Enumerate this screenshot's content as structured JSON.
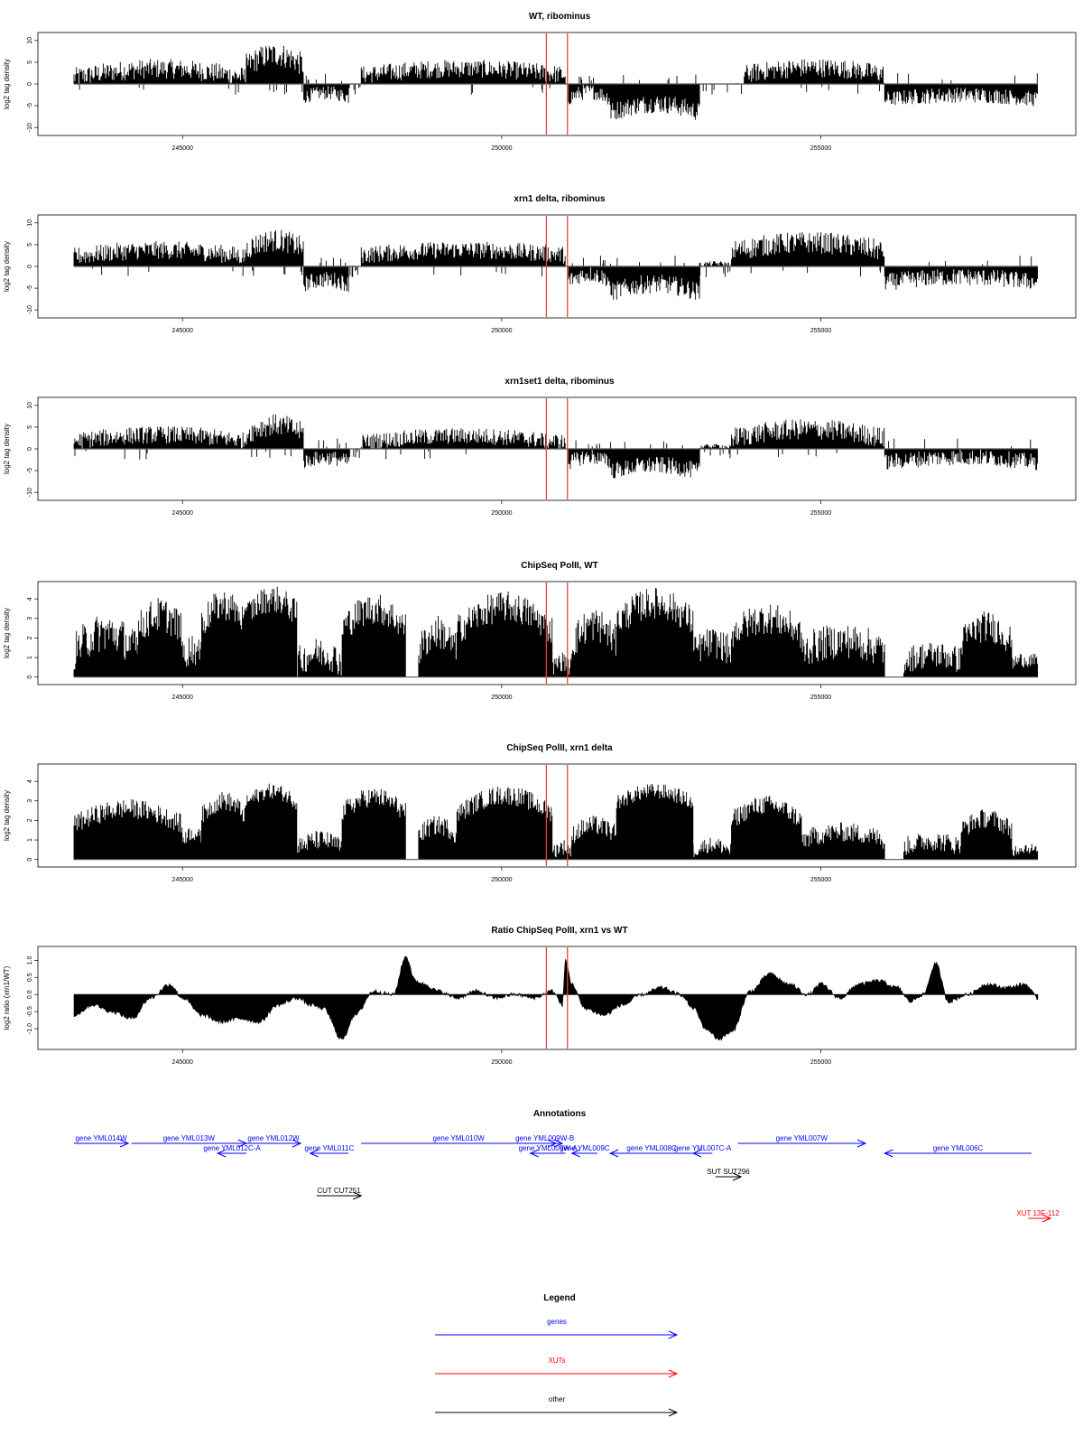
{
  "colors": {
    "genes": "#0000ff",
    "xuts": "#ff0000",
    "other": "#000000",
    "marker": "#e84040",
    "signal": "#000000"
  },
  "chart_data": [
    {
      "type": "bar",
      "title": "WT, ribominus",
      "ylabel": "log2 tag density",
      "xlim": [
        243300,
        258400
      ],
      "ylim": [
        -11,
        11
      ],
      "xticks": [
        {
          "value": 245000,
          "label": "245000"
        },
        {
          "value": 250000,
          "label": "250000"
        },
        {
          "value": 255000,
          "label": "255000"
        }
      ],
      "yticks": [
        {
          "value": 10,
          "label": "10"
        },
        {
          "value": 5,
          "label": "5"
        },
        {
          "value": 0,
          "label": "0"
        },
        {
          "value": -5,
          "label": "-5"
        },
        {
          "value": -10,
          "label": "-10"
        }
      ],
      "markers_x": [
        250700,
        251030
      ],
      "segments": [
        {
          "x0": 243300,
          "x1": 246000,
          "mean": 2.5,
          "amp": 2.0,
          "spread": 2.3
        },
        {
          "x0": 246000,
          "x1": 246900,
          "mean": 5.5,
          "amp": 2.5,
          "spread": 2.8
        },
        {
          "x0": 246900,
          "x1": 247600,
          "mean": -2.5,
          "amp": 1.0,
          "spread": 1.6
        },
        {
          "x0": 247600,
          "x1": 247800,
          "mean": 0.0,
          "amp": 0.0,
          "spread": 0.2
        },
        {
          "x0": 247800,
          "x1": 251000,
          "mean": 2.8,
          "amp": 1.5,
          "spread": 2.1
        },
        {
          "x0": 251050,
          "x1": 251700,
          "mean": -2.5,
          "amp": 1.5,
          "spread": 1.8
        },
        {
          "x0": 251700,
          "x1": 253100,
          "mean": -5.5,
          "amp": 2.0,
          "spread": 2.2
        },
        {
          "x0": 253100,
          "x1": 253800,
          "mean": 0.0,
          "amp": 0.0,
          "spread": 0.15
        },
        {
          "x0": 253800,
          "x1": 256000,
          "mean": 3.0,
          "amp": 1.5,
          "spread": 2.2
        },
        {
          "x0": 256000,
          "x1": 258400,
          "mean": -3.0,
          "amp": 1.0,
          "spread": 1.8
        }
      ]
    },
    {
      "type": "bar",
      "title": "xrn1 delta, ribominus",
      "ylabel": "log2 tag density",
      "xlim": [
        243300,
        258400
      ],
      "ylim": [
        -11,
        11
      ],
      "xticks": [
        {
          "value": 245000,
          "label": "245000"
        },
        {
          "value": 250000,
          "label": "250000"
        },
        {
          "value": 255000,
          "label": "255000"
        }
      ],
      "yticks": [
        {
          "value": 10,
          "label": "10"
        },
        {
          "value": 5,
          "label": "5"
        },
        {
          "value": 0,
          "label": "0"
        },
        {
          "value": -5,
          "label": "-5"
        },
        {
          "value": -10,
          "label": "-10"
        }
      ],
      "markers_x": [
        250700,
        251030
      ],
      "segments": [
        {
          "x0": 243300,
          "x1": 246000,
          "mean": 3.0,
          "amp": 1.5,
          "spread": 2.1
        },
        {
          "x0": 246000,
          "x1": 246900,
          "mean": 5.0,
          "amp": 2.0,
          "spread": 2.6
        },
        {
          "x0": 246900,
          "x1": 247600,
          "mean": -3.5,
          "amp": 1.0,
          "spread": 1.9
        },
        {
          "x0": 247600,
          "x1": 247800,
          "mean": 0.0,
          "amp": 0.0,
          "spread": 0.2
        },
        {
          "x0": 247800,
          "x1": 251000,
          "mean": 3.2,
          "amp": 1.2,
          "spread": 2.0
        },
        {
          "x0": 251050,
          "x1": 251700,
          "mean": -2.5,
          "amp": 1.5,
          "spread": 1.9
        },
        {
          "x0": 251700,
          "x1": 253100,
          "mean": -5.0,
          "amp": 2.0,
          "spread": 2.2
        },
        {
          "x0": 253100,
          "x1": 253600,
          "mean": 0.5,
          "amp": 0.3,
          "spread": 0.6
        },
        {
          "x0": 253600,
          "x1": 256000,
          "mean": 4.5,
          "amp": 2.0,
          "spread": 2.5
        },
        {
          "x0": 256000,
          "x1": 258400,
          "mean": -3.0,
          "amp": 1.2,
          "spread": 2.0
        }
      ]
    },
    {
      "type": "bar",
      "title": "xrn1set1 delta, ribominus",
      "ylabel": "log2 tag density",
      "xlim": [
        243300,
        258400
      ],
      "ylim": [
        -11,
        11
      ],
      "xticks": [
        {
          "value": 245000,
          "label": "245000"
        },
        {
          "value": 250000,
          "label": "250000"
        },
        {
          "value": 255000,
          "label": "255000"
        }
      ],
      "yticks": [
        {
          "value": 10,
          "label": "10"
        },
        {
          "value": 5,
          "label": "5"
        },
        {
          "value": 0,
          "label": "0"
        },
        {
          "value": -5,
          "label": "-5"
        },
        {
          "value": -10,
          "label": "-10"
        }
      ],
      "markers_x": [
        250700,
        251030
      ],
      "segments": [
        {
          "x0": 243300,
          "x1": 246000,
          "mean": 2.5,
          "amp": 1.5,
          "spread": 2.0
        },
        {
          "x0": 246000,
          "x1": 246900,
          "mean": 4.5,
          "amp": 2.0,
          "spread": 2.5
        },
        {
          "x0": 246900,
          "x1": 247600,
          "mean": -2.5,
          "amp": 1.0,
          "spread": 1.7
        },
        {
          "x0": 247600,
          "x1": 247800,
          "mean": 0.0,
          "amp": 0.0,
          "spread": 0.2
        },
        {
          "x0": 247800,
          "x1": 251000,
          "mean": 2.2,
          "amp": 1.5,
          "spread": 1.9
        },
        {
          "x0": 251050,
          "x1": 251700,
          "mean": -2.5,
          "amp": 1.5,
          "spread": 1.8
        },
        {
          "x0": 251700,
          "x1": 253100,
          "mean": -4.5,
          "amp": 1.5,
          "spread": 2.0
        },
        {
          "x0": 253100,
          "x1": 253600,
          "mean": 0.5,
          "amp": 0.3,
          "spread": 0.5
        },
        {
          "x0": 253600,
          "x1": 256000,
          "mean": 3.5,
          "amp": 2.0,
          "spread": 2.4
        },
        {
          "x0": 256000,
          "x1": 258400,
          "mean": -2.5,
          "amp": 1.2,
          "spread": 1.9
        }
      ]
    },
    {
      "type": "bar",
      "title": "ChipSeq PolII, WT",
      "ylabel": "log2 tag density",
      "xlim": [
        243300,
        258400
      ],
      "ylim": [
        -0.2,
        4.7
      ],
      "xticks": [
        {
          "value": 245000,
          "label": "245000"
        },
        {
          "value": 250000,
          "label": "250000"
        },
        {
          "value": 255000,
          "label": "255000"
        }
      ],
      "yticks": [
        {
          "value": 0,
          "label": "0"
        },
        {
          "value": 1,
          "label": "1"
        },
        {
          "value": 2,
          "label": "2"
        },
        {
          "value": 3,
          "label": "3"
        },
        {
          "value": 4,
          "label": "4"
        }
      ],
      "markers_x": [
        250700,
        251030
      ],
      "segments": [
        {
          "x0": 243300,
          "x1": 244300,
          "mean": 1.8,
          "amp": 1.0,
          "spread": 1.0
        },
        {
          "x0": 244300,
          "x1": 245000,
          "mean": 2.8,
          "amp": 0.8,
          "spread": 0.9
        },
        {
          "x0": 245000,
          "x1": 245300,
          "mean": 1.2,
          "amp": 0.5,
          "spread": 0.8
        },
        {
          "x0": 245300,
          "x1": 246000,
          "mean": 3.2,
          "amp": 1.0,
          "spread": 0.8
        },
        {
          "x0": 246000,
          "x1": 246800,
          "mean": 3.6,
          "amp": 0.8,
          "spread": 0.7
        },
        {
          "x0": 246800,
          "x1": 247500,
          "mean": 1.0,
          "amp": 0.5,
          "spread": 0.8
        },
        {
          "x0": 247500,
          "x1": 248500,
          "mean": 3.0,
          "amp": 1.0,
          "spread": 0.8
        },
        {
          "x0": 248500,
          "x1": 248700,
          "mean": 0.0,
          "amp": 0.0,
          "spread": 0.0
        },
        {
          "x0": 248700,
          "x1": 249300,
          "mean": 1.8,
          "amp": 1.0,
          "spread": 0.9
        },
        {
          "x0": 249300,
          "x1": 250800,
          "mean": 3.0,
          "amp": 1.2,
          "spread": 0.8
        },
        {
          "x0": 250800,
          "x1": 251100,
          "mean": 0.6,
          "amp": 0.4,
          "spread": 0.5
        },
        {
          "x0": 251100,
          "x1": 251800,
          "mean": 2.2,
          "amp": 1.0,
          "spread": 0.9
        },
        {
          "x0": 251800,
          "x1": 253000,
          "mean": 3.3,
          "amp": 1.0,
          "spread": 0.8
        },
        {
          "x0": 253000,
          "x1": 253600,
          "mean": 1.5,
          "amp": 0.5,
          "spread": 0.8
        },
        {
          "x0": 253600,
          "x1": 254700,
          "mean": 2.6,
          "amp": 0.8,
          "spread": 0.8
        },
        {
          "x0": 254700,
          "x1": 256000,
          "mean": 1.6,
          "amp": 0.5,
          "spread": 0.9
        },
        {
          "x0": 256000,
          "x1": 256300,
          "mean": 0.0,
          "amp": 0.0,
          "spread": 0.0
        },
        {
          "x0": 256300,
          "x1": 257200,
          "mean": 1.0,
          "amp": 0.3,
          "spread": 0.7
        },
        {
          "x0": 257200,
          "x1": 258000,
          "mean": 2.2,
          "amp": 0.8,
          "spread": 0.8
        },
        {
          "x0": 258000,
          "x1": 258400,
          "mean": 0.8,
          "amp": 0.2,
          "spread": 0.4
        }
      ]
    },
    {
      "type": "bar",
      "title": "ChipSeq PolII, xrn1 delta",
      "ylabel": "log2 tag density",
      "xlim": [
        243300,
        258400
      ],
      "ylim": [
        -0.2,
        4.7
      ],
      "xticks": [
        {
          "value": 245000,
          "label": "245000"
        },
        {
          "value": 250000,
          "label": "250000"
        },
        {
          "value": 255000,
          "label": "255000"
        }
      ],
      "yticks": [
        {
          "value": 0,
          "label": "0"
        },
        {
          "value": 1,
          "label": "1"
        },
        {
          "value": 2,
          "label": "2"
        },
        {
          "value": 3,
          "label": "3"
        },
        {
          "value": 4,
          "label": "4"
        }
      ],
      "markers_x": [
        250700,
        251030
      ],
      "segments": [
        {
          "x0": 243300,
          "x1": 245000,
          "mean": 2.2,
          "amp": 0.8,
          "spread": 0.5
        },
        {
          "x0": 245000,
          "x1": 245300,
          "mean": 1.2,
          "amp": 0.3,
          "spread": 0.4
        },
        {
          "x0": 245300,
          "x1": 246000,
          "mean": 2.6,
          "amp": 0.8,
          "spread": 0.5
        },
        {
          "x0": 246000,
          "x1": 246800,
          "mean": 3.2,
          "amp": 0.6,
          "spread": 0.4
        },
        {
          "x0": 246800,
          "x1": 247500,
          "mean": 0.8,
          "amp": 0.4,
          "spread": 0.5
        },
        {
          "x0": 247500,
          "x1": 248500,
          "mean": 2.8,
          "amp": 0.8,
          "spread": 0.5
        },
        {
          "x0": 248500,
          "x1": 248700,
          "mean": 0.0,
          "amp": 0.0,
          "spread": 0.0
        },
        {
          "x0": 248700,
          "x1": 249300,
          "mean": 1.5,
          "amp": 0.5,
          "spread": 0.5
        },
        {
          "x0": 249300,
          "x1": 250800,
          "mean": 2.8,
          "amp": 1.0,
          "spread": 0.5
        },
        {
          "x0": 250800,
          "x1": 251100,
          "mean": 0.5,
          "amp": 0.3,
          "spread": 0.4
        },
        {
          "x0": 251100,
          "x1": 251800,
          "mean": 1.5,
          "amp": 0.5,
          "spread": 0.5
        },
        {
          "x0": 251800,
          "x1": 253000,
          "mean": 3.2,
          "amp": 0.6,
          "spread": 0.4
        },
        {
          "x0": 253000,
          "x1": 253600,
          "mean": 0.6,
          "amp": 0.3,
          "spread": 0.4
        },
        {
          "x0": 253600,
          "x1": 254700,
          "mean": 2.4,
          "amp": 0.8,
          "spread": 0.5
        },
        {
          "x0": 254700,
          "x1": 256000,
          "mean": 1.2,
          "amp": 0.4,
          "spread": 0.5
        },
        {
          "x0": 256000,
          "x1": 256300,
          "mean": 0.0,
          "amp": 0.0,
          "spread": 0.0
        },
        {
          "x0": 256300,
          "x1": 257200,
          "mean": 0.8,
          "amp": 0.3,
          "spread": 0.5
        },
        {
          "x0": 257200,
          "x1": 258000,
          "mean": 1.8,
          "amp": 0.6,
          "spread": 0.5
        },
        {
          "x0": 258000,
          "x1": 258400,
          "mean": 0.5,
          "amp": 0.2,
          "spread": 0.3
        }
      ]
    },
    {
      "type": "area",
      "title": "Ratio ChipSeq PolII, xrn1 vs WT",
      "ylabel": "log2 ratio (xrn1/WT)",
      "xlim": [
        243300,
        258400
      ],
      "ylim": [
        -1.5,
        1.3
      ],
      "xticks": [
        {
          "value": 245000,
          "label": "245000"
        },
        {
          "value": 250000,
          "label": "250000"
        },
        {
          "value": 255000,
          "label": "255000"
        }
      ],
      "yticks": [
        {
          "value": 1.0,
          "label": "1.0"
        },
        {
          "value": 0.5,
          "label": "0.5"
        },
        {
          "value": 0.0,
          "label": "0.0"
        },
        {
          "value": -0.5,
          "label": "-0.5"
        },
        {
          "value": -1.0,
          "label": "-1.0"
        }
      ],
      "markers_x": [
        250700,
        251030
      ],
      "x": [
        243300,
        243600,
        243900,
        244200,
        244500,
        244800,
        245000,
        245300,
        245600,
        245900,
        246200,
        246500,
        246800,
        247000,
        247200,
        247500,
        247700,
        248000,
        248300,
        248500,
        248650,
        248800,
        249000,
        249300,
        249600,
        249900,
        250200,
        250500,
        250800,
        250950,
        251000,
        251100,
        251300,
        251600,
        251900,
        252200,
        252500,
        252800,
        253000,
        253200,
        253400,
        253600,
        253900,
        254200,
        254500,
        254800,
        255000,
        255300,
        255600,
        255900,
        256200,
        256400,
        256600,
        256800,
        257000,
        257300,
        257600,
        257900,
        258200,
        258400
      ],
      "values": [
        -0.6,
        -0.3,
        -0.5,
        -0.7,
        -0.1,
        0.3,
        -0.1,
        -0.6,
        -0.8,
        -0.7,
        -0.8,
        -0.3,
        -0.1,
        -0.3,
        -0.4,
        -1.3,
        -0.6,
        0.1,
        0.0,
        1.1,
        0.4,
        0.3,
        0.1,
        -0.1,
        0.1,
        -0.1,
        0.0,
        -0.1,
        0.1,
        -0.3,
        1.0,
        0.3,
        -0.4,
        -0.6,
        -0.3,
        0.0,
        0.2,
        0.0,
        -0.4,
        -1.0,
        -1.3,
        -1.1,
        0.1,
        0.6,
        0.3,
        0.0,
        0.3,
        -0.1,
        0.3,
        0.4,
        0.2,
        -0.2,
        0.0,
        0.9,
        -0.2,
        0.0,
        0.3,
        0.2,
        0.3,
        -0.1
      ]
    }
  ],
  "annotations": {
    "title": "Annotations",
    "xlim": [
      243300,
      258400
    ],
    "features": [
      {
        "label": "gene YML014W",
        "kind": "gene",
        "x0": 243300,
        "x1": 244150,
        "strand": "+",
        "row": 0
      },
      {
        "label": "gene YML013W",
        "kind": "gene",
        "x0": 244200,
        "x1": 246000,
        "strand": "+",
        "row": 0
      },
      {
        "label": "gene YML012W",
        "kind": "gene",
        "x0": 246000,
        "x1": 246850,
        "strand": "+",
        "row": 0
      },
      {
        "label": "gene YML012C-A",
        "kind": "gene",
        "x0": 245550,
        "x1": 246000,
        "strand": "-",
        "row": 1
      },
      {
        "label": "gene YML011C",
        "kind": "gene",
        "x0": 247000,
        "x1": 247600,
        "strand": "-",
        "row": 1
      },
      {
        "label": "gene YML010W",
        "kind": "gene",
        "x0": 247800,
        "x1": 250850,
        "strand": "+",
        "row": 0
      },
      {
        "label": "gene YML009W-B",
        "kind": "gene",
        "x0": 250400,
        "x1": 250950,
        "strand": "+",
        "row": 0
      },
      {
        "label": "gene YML009W-A",
        "kind": "gene",
        "x0": 250450,
        "x1": 251000,
        "strand": "-",
        "row": 1
      },
      {
        "label": "gene YML009C",
        "kind": "gene",
        "x0": 251100,
        "x1": 251500,
        "strand": "-",
        "row": 1
      },
      {
        "label": "gene YML008C",
        "kind": "gene",
        "x0": 251700,
        "x1": 253000,
        "strand": "-",
        "row": 1
      },
      {
        "label": "gene YML007C-A",
        "kind": "gene",
        "x0": 253000,
        "x1": 253300,
        "strand": "-",
        "row": 1
      },
      {
        "label": "gene YML007W",
        "kind": "gene",
        "x0": 253700,
        "x1": 255700,
        "strand": "+",
        "row": 0
      },
      {
        "label": "gene YML006C",
        "kind": "gene",
        "x0": 256000,
        "x1": 258300,
        "strand": "-",
        "row": 1
      },
      {
        "label": "SUT SUT296",
        "kind": "other",
        "x0": 253350,
        "x1": 253750,
        "strand": "+",
        "row": 2
      },
      {
        "label": "CUT CUT251",
        "kind": "other",
        "x0": 247100,
        "x1": 247800,
        "strand": "+",
        "row": 3
      },
      {
        "label": "XUT 13F-112",
        "kind": "xut",
        "x0": 258250,
        "x1": 258600,
        "strand": "+",
        "row": 4
      }
    ]
  },
  "legend": {
    "title": "Legend",
    "items": [
      {
        "label": "genes",
        "kind": "gene"
      },
      {
        "label": "XUTs",
        "kind": "xut"
      },
      {
        "label": "other",
        "kind": "other"
      }
    ]
  }
}
